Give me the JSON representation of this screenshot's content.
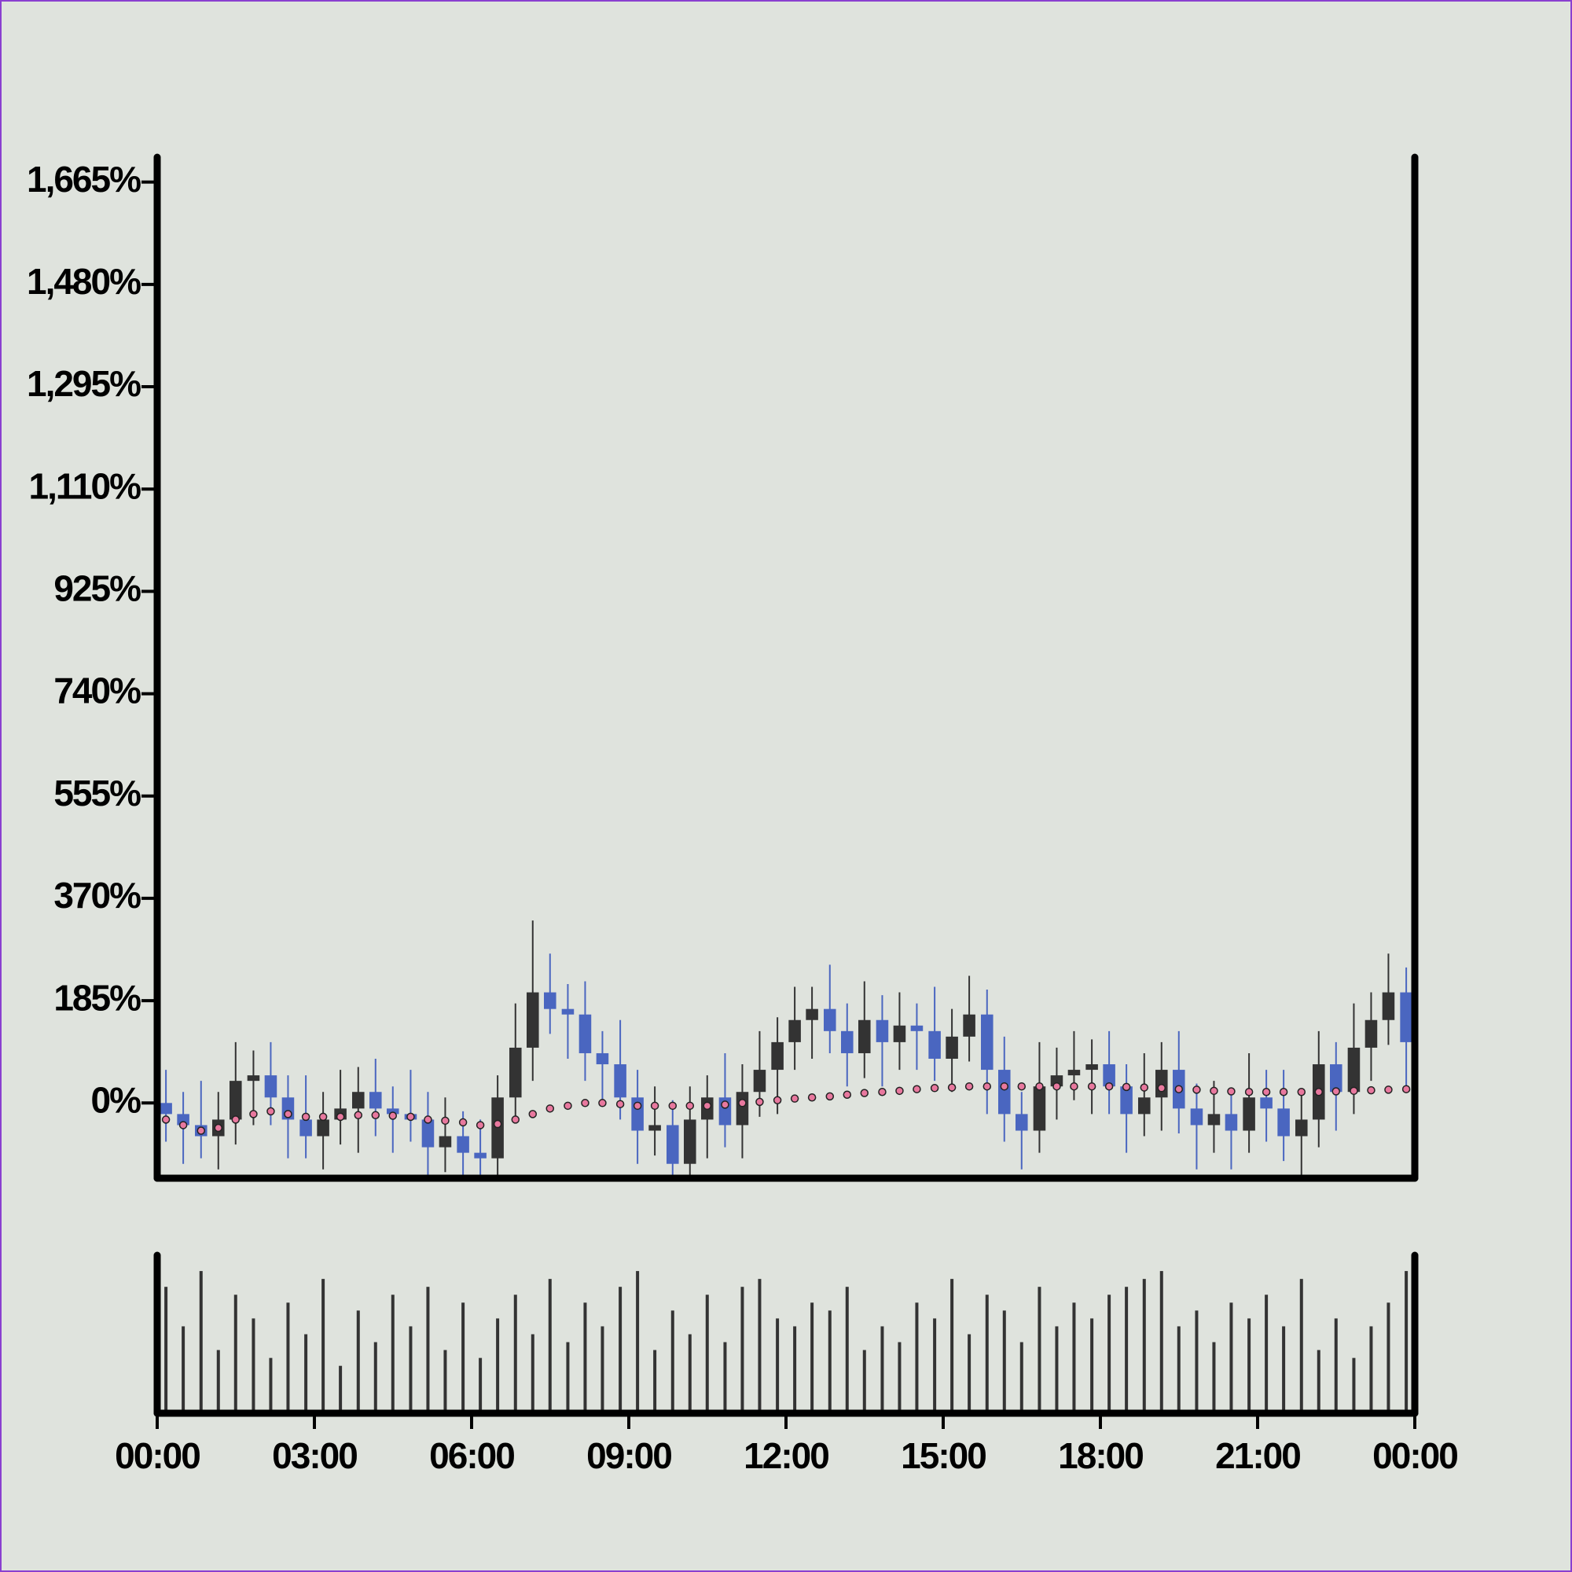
{
  "chart_data": {
    "type": "candlestick",
    "xlim": [
      0,
      24
    ],
    "xticks": [
      {
        "value": 0,
        "label": "00:00"
      },
      {
        "value": 3,
        "label": "03:00"
      },
      {
        "value": 6,
        "label": "06:00"
      },
      {
        "value": 9,
        "label": "09:00"
      },
      {
        "value": 12,
        "label": "12:00"
      },
      {
        "value": 15,
        "label": "15:00"
      },
      {
        "value": 18,
        "label": "18:00"
      },
      {
        "value": 21,
        "label": "21:00"
      },
      {
        "value": 24,
        "label": "00:00"
      }
    ],
    "ylim": [
      -136,
      1710
    ],
    "yticks": [
      {
        "value": 0,
        "label": "0%"
      },
      {
        "value": 185,
        "label": "185%"
      },
      {
        "value": 370,
        "label": "370%"
      },
      {
        "value": 555,
        "label": "555%"
      },
      {
        "value": 740,
        "label": "740%"
      },
      {
        "value": 925,
        "label": "925%"
      },
      {
        "value": 1110,
        "label": "1,110%"
      },
      {
        "value": 1295,
        "label": "1,295%"
      },
      {
        "value": 1480,
        "label": "1,480%"
      },
      {
        "value": 1665,
        "label": "1,665%"
      }
    ],
    "up_color": "#333333",
    "down_color": "#4a66c0",
    "x": [
      0,
      0.33,
      0.67,
      1,
      1.33,
      1.67,
      2,
      2.33,
      2.67,
      3,
      3.33,
      3.67,
      4,
      4.33,
      4.67,
      5,
      5.33,
      5.67,
      6,
      6.33,
      6.67,
      7,
      7.33,
      7.67,
      8,
      8.33,
      8.67,
      9,
      9.33,
      9.67,
      10,
      10.33,
      10.67,
      11,
      11.33,
      11.67,
      12,
      12.33,
      12.67,
      13,
      13.33,
      13.67,
      14,
      14.33,
      14.67,
      15,
      15.33,
      15.67,
      16,
      16.33,
      16.67,
      17,
      17.33,
      17.67,
      18,
      18.33,
      18.67,
      19,
      19.33,
      19.67,
      20,
      20.33,
      20.67,
      21,
      21.33,
      21.67,
      22,
      22.33,
      22.67,
      23,
      23.33,
      23.67
    ],
    "open": [
      0,
      -20,
      -40,
      -60,
      -30,
      40,
      50,
      10,
      -30,
      -60,
      -30,
      -10,
      20,
      -10,
      -20,
      -30,
      -80,
      -60,
      -90,
      -100,
      10,
      100,
      200,
      170,
      160,
      90,
      70,
      10,
      -50,
      -40,
      -110,
      -30,
      10,
      -40,
      20,
      60,
      110,
      150,
      170,
      130,
      90,
      150,
      110,
      140,
      130,
      80,
      120,
      160,
      60,
      -20,
      -50,
      30,
      50,
      60,
      70,
      30,
      -20,
      10,
      60,
      -10,
      -40,
      -20,
      -50,
      10,
      -10,
      -60,
      -30,
      70,
      20,
      100,
      150,
      200
    ],
    "high": [
      60,
      20,
      40,
      20,
      110,
      95,
      110,
      50,
      50,
      20,
      60,
      65,
      80,
      30,
      60,
      20,
      10,
      -15,
      -30,
      50,
      180,
      330,
      270,
      215,
      220,
      130,
      150,
      60,
      30,
      5,
      30,
      50,
      90,
      70,
      130,
      155,
      210,
      210,
      250,
      180,
      220,
      195,
      200,
      180,
      210,
      170,
      230,
      205,
      120,
      20,
      110,
      100,
      130,
      115,
      130,
      70,
      90,
      110,
      130,
      35,
      40,
      20,
      90,
      60,
      60,
      15,
      130,
      110,
      180,
      200,
      270,
      245
    ],
    "low": [
      -70,
      -110,
      -100,
      -120,
      -75,
      -40,
      -40,
      -100,
      -100,
      -120,
      -75,
      -90,
      -60,
      -90,
      -70,
      -140,
      -125,
      -170,
      -150,
      -170,
      -30,
      40,
      125,
      80,
      40,
      0,
      -30,
      -110,
      -95,
      -190,
      -160,
      -100,
      -80,
      -100,
      -25,
      -20,
      60,
      80,
      90,
      30,
      45,
      30,
      60,
      60,
      40,
      20,
      75,
      -20,
      -70,
      -120,
      -90,
      -30,
      5,
      -20,
      -20,
      -90,
      -60,
      -50,
      -55,
      -120,
      -90,
      -120,
      -90,
      -70,
      -105,
      -140,
      -80,
      -50,
      -20,
      40,
      105,
      30
    ],
    "close": [
      -20,
      -40,
      -60,
      -30,
      40,
      50,
      10,
      -30,
      -60,
      -30,
      -10,
      20,
      -10,
      -20,
      -30,
      -80,
      -60,
      -90,
      -100,
      10,
      100,
      200,
      170,
      160,
      90,
      70,
      10,
      -50,
      -40,
      -110,
      -30,
      10,
      -40,
      20,
      60,
      110,
      150,
      170,
      130,
      90,
      150,
      110,
      140,
      130,
      80,
      120,
      160,
      60,
      -20,
      -50,
      30,
      50,
      60,
      70,
      30,
      -20,
      10,
      60,
      -10,
      -40,
      -20,
      -50,
      10,
      -10,
      -60,
      -30,
      70,
      20,
      100,
      150,
      200,
      110
    ],
    "ma": {
      "color": "#e8789e",
      "values": [
        -30,
        -40,
        -50,
        -45,
        -30,
        -20,
        -15,
        -20,
        -25,
        -25,
        -25,
        -22,
        -22,
        -23,
        -25,
        -30,
        -32,
        -35,
        -40,
        -38,
        -30,
        -20,
        -10,
        -5,
        0,
        0,
        -2,
        -5,
        -5,
        -5,
        -5,
        -5,
        -3,
        0,
        2,
        5,
        8,
        10,
        12,
        15,
        18,
        20,
        22,
        25,
        27,
        28,
        30,
        30,
        30,
        30,
        30,
        30,
        30,
        30,
        30,
        29,
        28,
        27,
        25,
        24,
        22,
        21,
        20,
        20,
        20,
        20,
        20,
        21,
        22,
        23,
        24,
        25
      ]
    },
    "volume": {
      "color": "#333333",
      "ylim": [
        0,
        100
      ],
      "values": [
        80,
        55,
        90,
        40,
        75,
        60,
        35,
        70,
        50,
        85,
        30,
        65,
        45,
        75,
        55,
        80,
        40,
        70,
        35,
        60,
        75,
        50,
        85,
        45,
        70,
        55,
        80,
        90,
        40,
        65,
        50,
        75,
        45,
        80,
        85,
        60,
        55,
        70,
        65,
        80,
        40,
        55,
        45,
        70,
        60,
        85,
        50,
        75,
        65,
        45,
        80,
        55,
        70,
        60,
        75,
        80,
        85,
        90,
        55,
        65,
        45,
        70,
        60,
        75,
        55,
        85,
        40,
        60,
        35,
        55,
        70,
        90
      ]
    }
  }
}
